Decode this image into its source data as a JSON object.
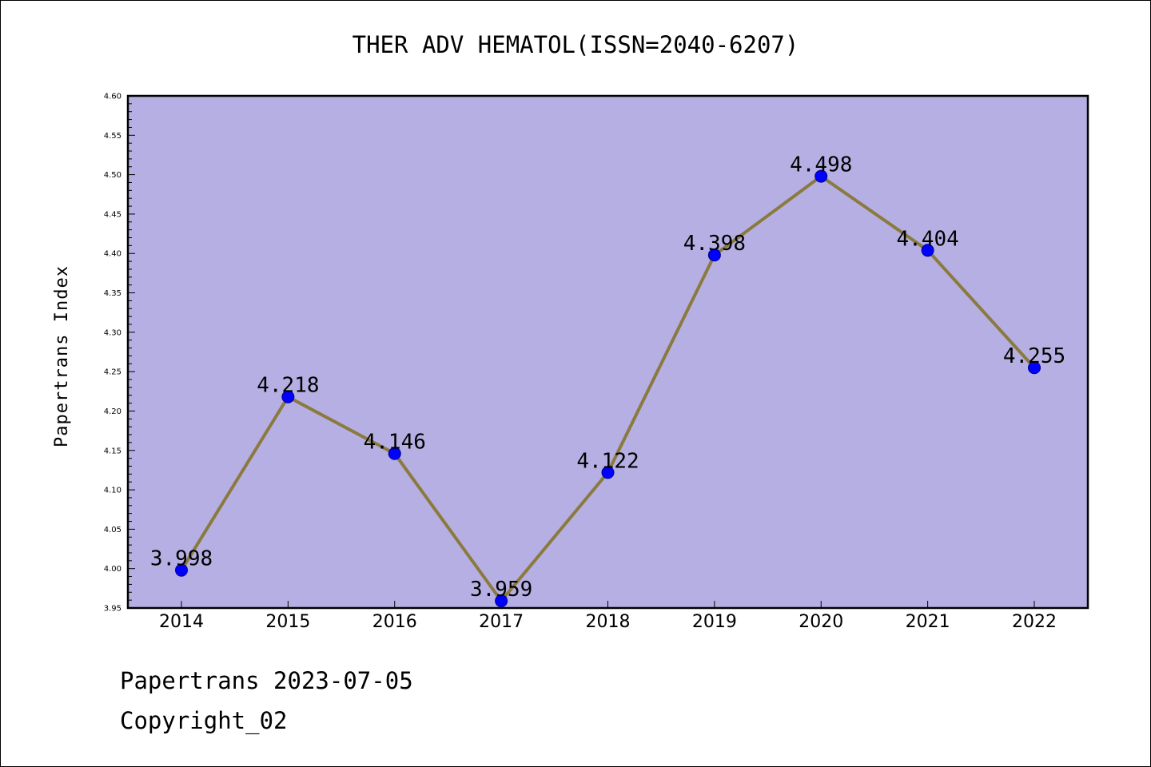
{
  "chart_data": {
    "type": "line",
    "title": "THER ADV HEMATOL(ISSN=2040-6207)",
    "ylabel": "Papertrans Index",
    "xlabel": "",
    "categories": [
      "2014",
      "2015",
      "2016",
      "2017",
      "2018",
      "2019",
      "2020",
      "2021",
      "2022"
    ],
    "values": [
      3.998,
      4.218,
      4.146,
      3.959,
      4.122,
      4.398,
      4.498,
      4.404,
      4.255
    ],
    "data_labels": [
      "3.998",
      "4.218",
      "4.146",
      "3.959",
      "4.122",
      "4.398",
      "4.498",
      "4.404",
      "4.255"
    ],
    "ylim": [
      3.95,
      4.6
    ],
    "yticks": [
      "3.95",
      "4.00",
      "4.05",
      "4.10",
      "4.15",
      "4.20",
      "4.25",
      "4.30",
      "4.35",
      "4.40",
      "4.45",
      "4.50",
      "4.55",
      "4.60"
    ],
    "grid": false,
    "legend": "none",
    "colors": {
      "plot_background": "#b5afe3",
      "line": "#8b7a3e",
      "marker": "#0000ff",
      "marker_edge": "#00008b"
    }
  },
  "footer": {
    "line1": "Papertrans 2023-07-05",
    "line2": "Copyright_02"
  }
}
